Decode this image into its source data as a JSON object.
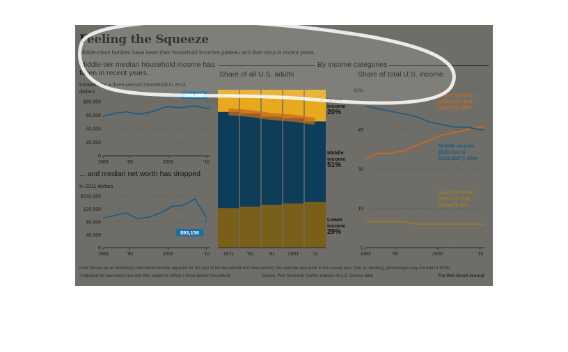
{
  "header": {
    "title": "Feeling the Squeeze",
    "subtitle": "Middle-class families have seen their household incomes plateau and then drop in recent years."
  },
  "colors": {
    "background": "#6f6d67",
    "upper": "#e8a91f",
    "middle": "#0e3d5a",
    "lower": "#7a5f1a",
    "line_blue": "#1f5b85",
    "callout": "#1a6fa3",
    "upper_line": "#c76a1e",
    "lower_line": "#9c7a1e"
  },
  "chart_data": [
    {
      "id": "median_income",
      "type": "line",
      "title": "Middle-tier median household income has fallen in recent years...",
      "subtitle": "Incomes for a three-person household in 2011",
      "ylabel": "dollars",
      "ylim": [
        0,
        80000
      ],
      "yticks": [
        "$80,000",
        "60,000",
        "40,000",
        "20,000",
        "0"
      ],
      "xticks": [
        "1983",
        "'90",
        "2000",
        "'10"
      ],
      "x": [
        1983,
        1984,
        1985,
        1986,
        1987,
        1988,
        1989,
        1990,
        1991,
        1992,
        1993,
        1994,
        1995,
        1996,
        1997,
        1998,
        1999,
        2000,
        2001,
        2002,
        2003,
        2004,
        2005,
        2006,
        2007,
        2008,
        2009,
        2010,
        2011
      ],
      "values": [
        58000,
        60000,
        61000,
        62500,
        63500,
        64000,
        65000,
        64000,
        62500,
        62000,
        62000,
        63000,
        64000,
        65500,
        67000,
        69500,
        71500,
        72500,
        72000,
        71500,
        71000,
        71500,
        72500,
        73000,
        73500,
        72500,
        71000,
        70000,
        69487
      ],
      "callout": "$69,487"
    },
    {
      "id": "net_worth",
      "type": "line",
      "title": "... and median net worth has dropped",
      "subtitle": "In 2011 dollars",
      "ylim": [
        0,
        160000
      ],
      "yticks": [
        "$160,000",
        "120,000",
        "80,000",
        "40,000",
        "0"
      ],
      "xticks": [
        "1983",
        "'90",
        "2000",
        "'10"
      ],
      "x": [
        1983,
        1989,
        1992,
        1995,
        1998,
        2001,
        2004,
        2007,
        2010
      ],
      "values": [
        92000,
        108000,
        90000,
        95000,
        108000,
        128000,
        132000,
        152000,
        93150
      ],
      "callout": "$93,150"
    },
    {
      "id": "share_adults",
      "type": "bar",
      "title": "Share of all U.S. adults",
      "section_header": "By income categories",
      "categories": [
        "1971",
        "'81",
        "'91",
        "2001",
        "'11"
      ],
      "series": [
        {
          "name": "Lower income",
          "values": [
            25,
            26,
            27,
            28,
            29
          ]
        },
        {
          "name": "Middle income",
          "values": [
            61,
            59,
            56,
            54,
            51
          ]
        },
        {
          "name": "Upper income",
          "values": [
            14,
            15,
            17,
            18,
            20
          ]
        }
      ],
      "labels": [
        {
          "line1": "Upper",
          "line2": "income",
          "pct": "20%"
        },
        {
          "line1": "Middle",
          "line2": "income",
          "pct": "51%"
        },
        {
          "line1": "Lower",
          "line2": "income",
          "pct": "29%"
        }
      ]
    },
    {
      "id": "share_income",
      "type": "line",
      "title": "Share of total U.S. income",
      "ylim": [
        0,
        60
      ],
      "yticks": [
        "60%",
        "45",
        "30",
        "15",
        "0"
      ],
      "xticks": [
        "1983",
        "'90",
        "2000",
        "'10"
      ],
      "x": [
        1983,
        1986,
        1989,
        1992,
        1995,
        1998,
        2001,
        2004,
        2007,
        2010,
        2011
      ],
      "series": [
        {
          "name": "Upper income",
          "values": [
            34,
            36,
            36,
            37,
            39,
            41,
            43,
            44,
            45,
            46,
            46
          ]
        },
        {
          "name": "Middle income",
          "values": [
            54,
            53,
            52,
            51,
            50,
            48,
            47,
            46,
            46,
            45,
            45
          ]
        },
        {
          "name": "Lower income",
          "values": [
            10,
            10,
            10,
            10,
            9,
            9,
            9,
            9,
            9,
            9,
            9
          ]
        }
      ],
      "legend": [
        {
          "text": "Upper income ($118,256 and above*): 46%"
        },
        {
          "text": "Middle income ($39,418 to $118,255*): 45%"
        },
        {
          "text": "Lower income ($39,417 and below*): 9%"
        }
      ]
    }
  ],
  "footer": {
    "note": "Note: Based on an individual's household income adjusted for the size of the household and measured by the calendar year prior to the survey year. Due to rounding, percentages may not add to 100%.",
    "asterisk": "* Adjusted for household size and then scaled to reflect a three-person household",
    "source": "Source: Pew Research Center analysis of U.S. Census data",
    "brand": "The Wall Street Journal"
  }
}
